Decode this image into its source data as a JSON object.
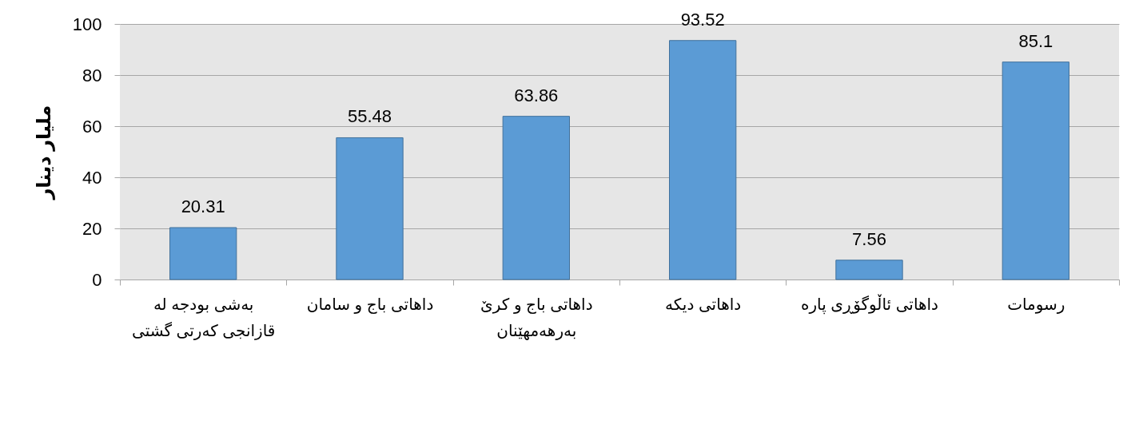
{
  "chart_data": {
    "type": "bar",
    "ylabel": "ملیار دینار",
    "categories": [
      "بەشی بودجە لە قازانجی کەرتی گشتی",
      "داهاتی باج و سامان",
      "داهاتی باج و کرێ بەرهەمهێنان",
      "داهاتی دیکە",
      "داهاتی ئاڵوگۆڕی پارە",
      "رسومات"
    ],
    "values": [
      20.31,
      55.48,
      63.86,
      93.52,
      7.56,
      85.1
    ],
    "color": "#5b9bd5",
    "ylim": [
      0,
      100
    ],
    "yticks": [
      0,
      20,
      40,
      60,
      80,
      100
    ],
    "grid": "y",
    "data_labels": true
  }
}
